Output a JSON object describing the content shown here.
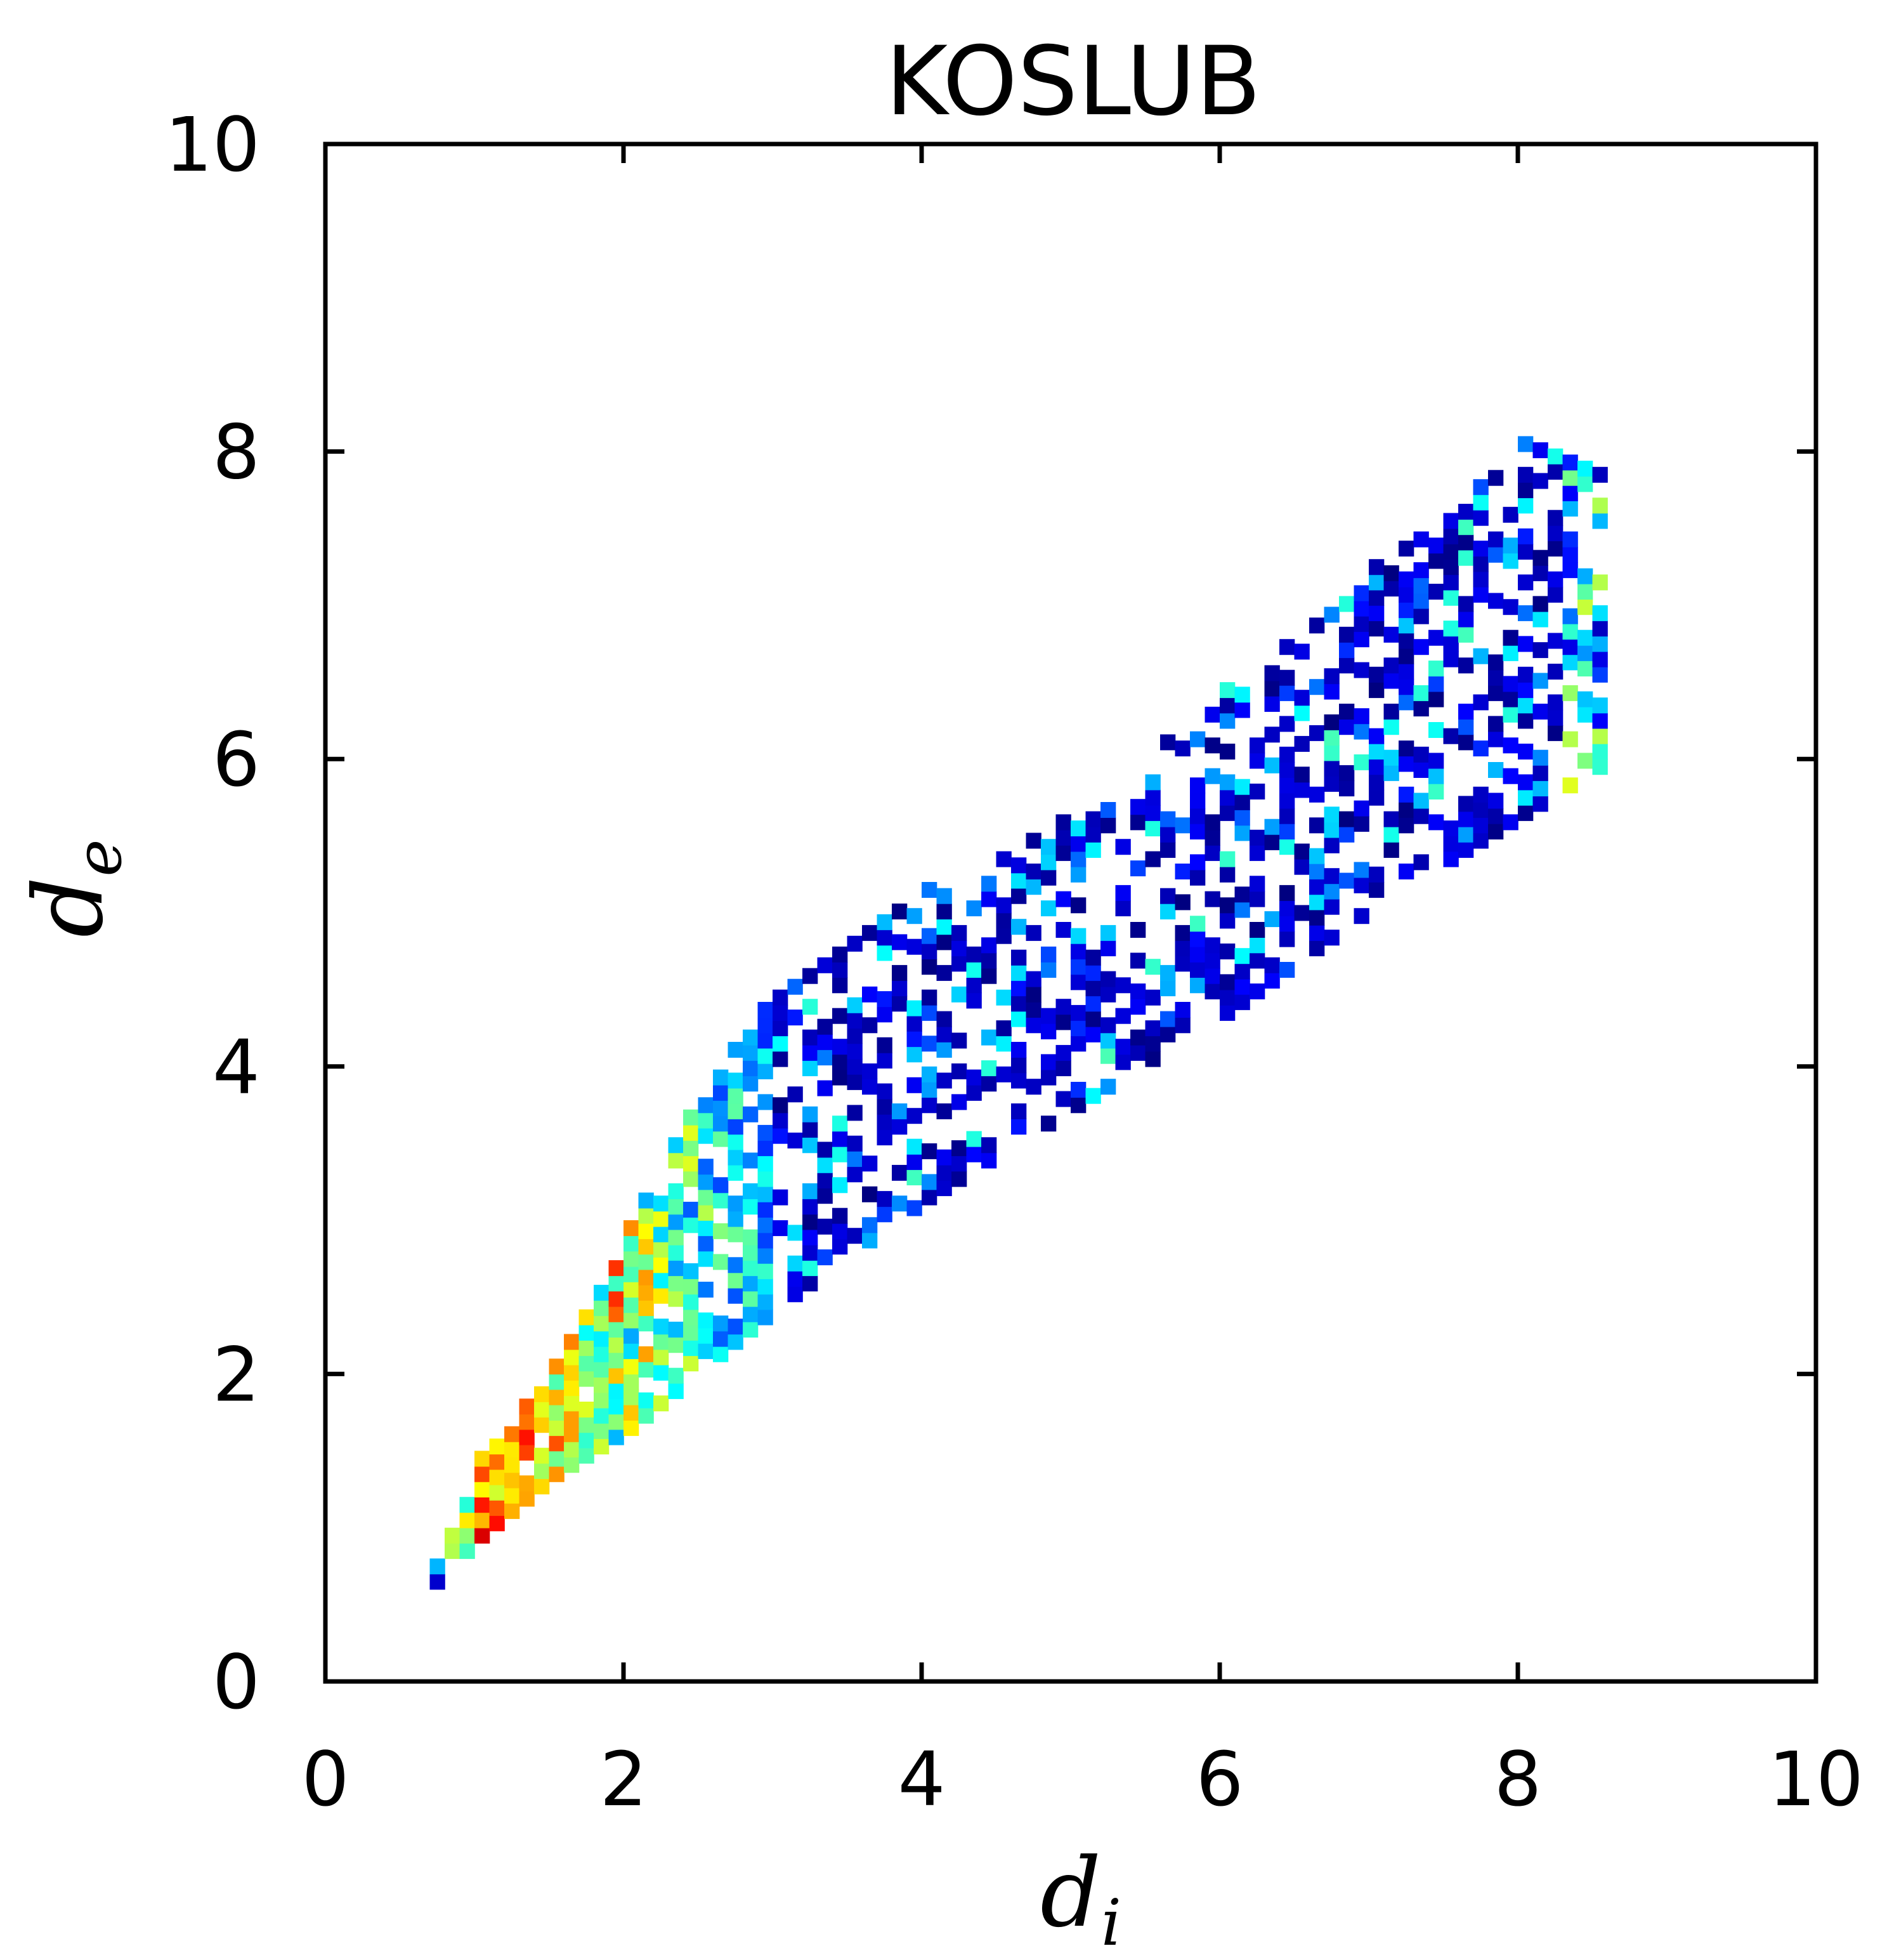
{
  "chart_data": {
    "type": "heatmap",
    "title": "KOSLUB",
    "xlabel": {
      "main": "d",
      "sub": "i"
    },
    "ylabel": {
      "main": "d",
      "sub": "e"
    },
    "xlim": [
      0,
      10
    ],
    "ylim": [
      0,
      10
    ],
    "xticks": [
      "0",
      "2",
      "4",
      "6",
      "8",
      "10"
    ],
    "yticks": [
      "0",
      "2",
      "4",
      "6",
      "8",
      "10"
    ],
    "xtick_values": [
      0,
      2,
      4,
      6,
      8,
      10
    ],
    "ytick_values": [
      0,
      2,
      4,
      6,
      8,
      10
    ],
    "grid": false,
    "colormap": "jet",
    "colormap_stops": [
      "#00007f",
      "#0000ff",
      "#007fff",
      "#00ffff",
      "#7fff7f",
      "#ffff00",
      "#ff7f00",
      "#ff0000",
      "#7f0000"
    ],
    "bin_size": 0.1,
    "density_profile": [
      {
        "di": 0.7,
        "de_min": 0.6,
        "de_max": 0.7,
        "intensity": 0.25
      },
      {
        "di": 1.0,
        "de_min": 0.9,
        "de_max": 1.4,
        "intensity": 0.95
      },
      {
        "di": 1.5,
        "de_min": 1.3,
        "de_max": 2.0,
        "intensity": 0.8
      },
      {
        "di": 2.0,
        "de_min": 1.6,
        "de_max": 2.9,
        "intensity": 0.55
      },
      {
        "di": 2.5,
        "de_min": 2.0,
        "de_max": 3.8,
        "intensity": 0.4
      },
      {
        "di": 3.0,
        "de_min": 2.4,
        "de_max": 4.5,
        "intensity": 0.3
      },
      {
        "di": 4.0,
        "de_min": 3.1,
        "de_max": 5.1,
        "intensity": 0.15
      },
      {
        "di": 5.0,
        "de_min": 3.7,
        "de_max": 5.6,
        "intensity": 0.12
      },
      {
        "di": 6.0,
        "de_min": 4.3,
        "de_max": 6.4,
        "intensity": 0.12
      },
      {
        "di": 7.0,
        "de_min": 5.0,
        "de_max": 7.2,
        "intensity": 0.14
      },
      {
        "di": 8.0,
        "de_min": 5.6,
        "de_max": 8.0,
        "intensity": 0.16
      },
      {
        "di": 8.5,
        "de_min": 5.9,
        "de_max": 7.8,
        "intensity": 0.3
      }
    ]
  }
}
